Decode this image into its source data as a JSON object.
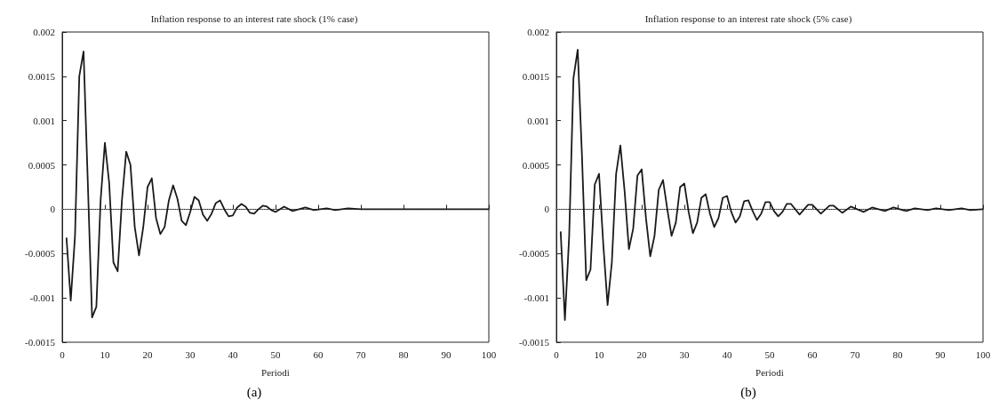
{
  "chart_data": [
    {
      "type": "line",
      "title": "Inflation response to an interest rate shock (1% case)",
      "xlabel": "Periodi",
      "annotations": [
        "(a)"
      ],
      "color": "#1a1a1a",
      "line_style": "solid",
      "marker": "none",
      "grid": false,
      "x": [
        1,
        2,
        3,
        4,
        5,
        6,
        7,
        8,
        9,
        10,
        11,
        12,
        13,
        14,
        15,
        16,
        17,
        18,
        19,
        20,
        21,
        22,
        23,
        24,
        25,
        26,
        27,
        28,
        29,
        30,
        31,
        32,
        33,
        34,
        35,
        36,
        37,
        38,
        39,
        40,
        41,
        42,
        43,
        44,
        45,
        46,
        47,
        48,
        49,
        50,
        52,
        54,
        57,
        59,
        62,
        64,
        67,
        70,
        75,
        80,
        85,
        90,
        95,
        100
      ],
      "values": [
        -0.00032,
        -0.00103,
        -0.0003,
        0.0015,
        0.00178,
        0.0003,
        -0.00122,
        -0.0011,
        0.0001,
        0.00075,
        0.0003,
        -0.0006,
        -0.0007,
        0.0001,
        0.00065,
        0.0005,
        -0.0002,
        -0.00052,
        -0.0002,
        0.00025,
        0.00035,
        -0.0001,
        -0.00028,
        -0.0002,
        0.0001,
        0.00027,
        0.00012,
        -0.00013,
        -0.00018,
        -3e-05,
        0.00014,
        0.0001,
        -6e-05,
        -0.00013,
        -5e-05,
        7e-05,
        0.0001,
        0,
        -8e-05,
        -7e-05,
        2e-05,
        6e-05,
        3e-05,
        -4e-05,
        -5e-05,
        0,
        4e-05,
        3e-05,
        -1e-05,
        -3e-05,
        3e-05,
        -2e-05,
        2e-05,
        -1e-05,
        1e-05,
        -1e-05,
        1e-05,
        0,
        0,
        0,
        0,
        0,
        0,
        0
      ],
      "xlim": [
        0,
        100
      ],
      "xticks": [
        0,
        10,
        20,
        30,
        40,
        50,
        60,
        70,
        80,
        90,
        100
      ],
      "ylim": [
        -0.0015,
        0.002
      ],
      "yticks": [
        -0.0015,
        -0.001,
        -0.0005,
        0,
        0.0005,
        0.001,
        0.0015,
        0.002
      ],
      "ref_lines": [
        {
          "axis": "y",
          "value": 0,
          "line_style": "dotted",
          "color": "#999999"
        }
      ]
    },
    {
      "type": "line",
      "title": "Inflation response to an interest rate shock (5% case)",
      "xlabel": "Periodi",
      "annotations": [
        "(b)"
      ],
      "color": "#1a1a1a",
      "line_style": "solid",
      "marker": "none",
      "grid": false,
      "x": [
        1,
        2,
        3,
        4,
        5,
        6,
        7,
        8,
        9,
        10,
        11,
        12,
        13,
        14,
        15,
        16,
        17,
        18,
        19,
        20,
        21,
        22,
        23,
        24,
        25,
        26,
        27,
        28,
        29,
        30,
        31,
        32,
        33,
        34,
        35,
        36,
        37,
        38,
        39,
        40,
        41,
        42,
        43,
        44,
        45,
        46,
        47,
        48,
        49,
        50,
        51,
        52,
        53,
        54,
        55,
        57,
        59,
        60,
        62,
        64,
        65,
        67,
        69,
        72,
        74,
        77,
        79,
        82,
        84,
        87,
        89,
        92,
        95,
        97,
        100
      ],
      "values": [
        -0.00025,
        -0.00125,
        -0.0003,
        0.00148,
        0.0018,
        0.0006,
        -0.0008,
        -0.00068,
        0.00028,
        0.0004,
        -0.0004,
        -0.00108,
        -0.0006,
        0.0004,
        0.00072,
        0.0002,
        -0.00045,
        -0.00022,
        0.00038,
        0.00045,
        -0.0001,
        -0.00053,
        -0.0003,
        0.00022,
        0.00033,
        0,
        -0.0003,
        -0.00015,
        0.00025,
        0.00029,
        -3e-05,
        -0.00027,
        -0.00015,
        0.00013,
        0.00017,
        -5e-05,
        -0.0002,
        -0.0001,
        0.00013,
        0.00015,
        -3e-05,
        -0.00015,
        -8e-05,
        9e-05,
        0.0001,
        -2e-05,
        -0.00012,
        -5e-05,
        8e-05,
        8e-05,
        -2e-05,
        -8e-05,
        -3e-05,
        6e-05,
        6e-05,
        -6e-05,
        5e-05,
        5e-05,
        -5e-05,
        4e-05,
        4e-05,
        -4e-05,
        3e-05,
        -3e-05,
        2e-05,
        -2e-05,
        2e-05,
        -2e-05,
        1e-05,
        -1e-05,
        1e-05,
        -1e-05,
        1e-05,
        -1e-05,
        0
      ],
      "xlim": [
        0,
        100
      ],
      "xticks": [
        0,
        10,
        20,
        30,
        40,
        50,
        60,
        70,
        80,
        90,
        100
      ],
      "ylim": [
        -0.0015,
        0.002
      ],
      "yticks": [
        -0.0015,
        -0.001,
        -0.0005,
        0,
        0.0005,
        0.001,
        0.0015,
        0.002
      ],
      "ref_lines": [
        {
          "axis": "y",
          "value": 0,
          "line_style": "dotted",
          "color": "#999999"
        }
      ]
    }
  ]
}
